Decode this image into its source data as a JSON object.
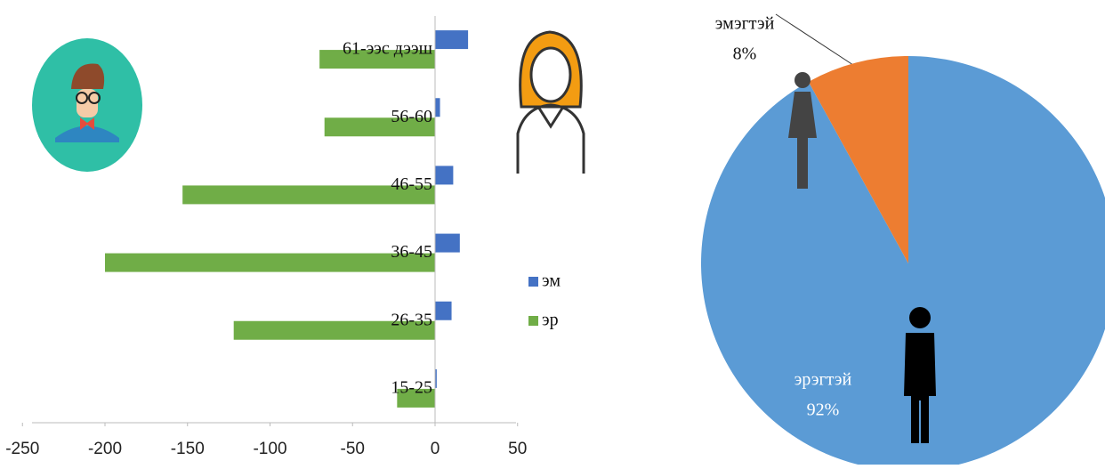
{
  "chart_data": [
    {
      "type": "bar",
      "orientation": "horizontal",
      "categories": [
        "15-25",
        "26-35",
        "36-45",
        "46-55",
        "56-60",
        "61-ээс дээш"
      ],
      "series": [
        {
          "name": "эм",
          "color": "#4472c4",
          "values": [
            1,
            10,
            15,
            11,
            3,
            20
          ]
        },
        {
          "name": "эр",
          "color": "#70ad47",
          "values": [
            -23,
            -122,
            -200,
            -153,
            -67,
            -70
          ]
        }
      ],
      "xlim": [
        -250,
        50
      ],
      "xticks": [
        -250,
        -200,
        -150,
        -100,
        -50,
        0,
        50
      ]
    },
    {
      "type": "pie",
      "categories": [
        "эрэгтэй",
        "эмэгтэй"
      ],
      "values": [
        92,
        8
      ],
      "value_labels": [
        "92%",
        "8%"
      ],
      "colors": [
        "#5b9bd5",
        "#ed7d31"
      ]
    }
  ]
}
